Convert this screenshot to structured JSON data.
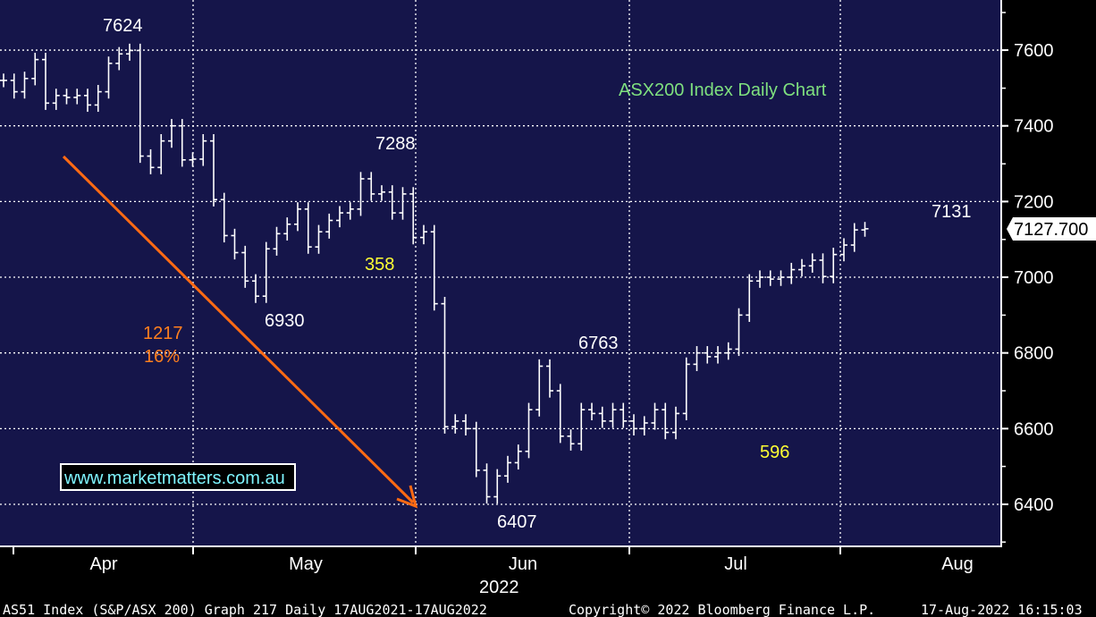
{
  "chart_data": {
    "type": "ohlc",
    "title": "ASX200 Index Daily Chart",
    "xlabel": "2022",
    "ylim": [
      6300,
      7760
    ],
    "y_ticks": [
      6400,
      6600,
      6800,
      7000,
      7200,
      7400,
      7600
    ],
    "x_ticks": [
      "Apr",
      "May",
      "Jun",
      "Jul",
      "Aug"
    ],
    "last_price": "7127.700",
    "grid": true,
    "colors": {
      "background": "#15154a",
      "bars": "#ffffff",
      "title": "#7fe07f",
      "arrow": "#ff6a13",
      "highlight": "#ffff33",
      "gridline": "#ffffff"
    },
    "series": [
      {
        "name": "",
        "closes": [
          7520,
          7490,
          7525,
          7575,
          7460,
          7480,
          7475,
          7480,
          7455,
          7490,
          7565,
          7590,
          7599,
          7320,
          7290,
          7360,
          7400,
          7310,
          7312,
          7360,
          7205,
          7110,
          7065,
          6990,
          6950,
          7075,
          7115,
          7140,
          7180,
          7080,
          7120,
          7150,
          7170,
          7180,
          7260,
          7220,
          7225,
          7170,
          7220,
          7105,
          7120,
          6930,
          6605,
          6620,
          6600,
          6490,
          6420,
          6475,
          6510,
          6540,
          6650,
          6765,
          6700,
          6580,
          6560,
          6650,
          6640,
          6620,
          6650,
          6620,
          6600,
          6615,
          6650,
          6590,
          6640,
          6770,
          6800,
          6790,
          6800,
          6810,
          6900,
          6990,
          7000,
          6995,
          7000,
          7020,
          7030,
          7045,
          7002,
          7060,
          7085,
          7125,
          7128
        ],
        "annotations": {
          "peak": "7624",
          "low1": "6930",
          "high1": "7288",
          "low2": "6407",
          "high2": "6763",
          "recent": "7131",
          "decline": "1217",
          "decline_pct": "16%",
          "rally1": "358",
          "rally2": "596"
        }
      }
    ],
    "watermark": "www.marketmatters.com.au"
  },
  "footer": {
    "security": "AS51 Index (S&P/ASX 200) Graph 217  Daily 17AUG2021-17AUG2022",
    "copyright": "Copyright© 2022 Bloomberg Finance L.P.",
    "timestamp": "17-Aug-2022 16:15:03"
  }
}
